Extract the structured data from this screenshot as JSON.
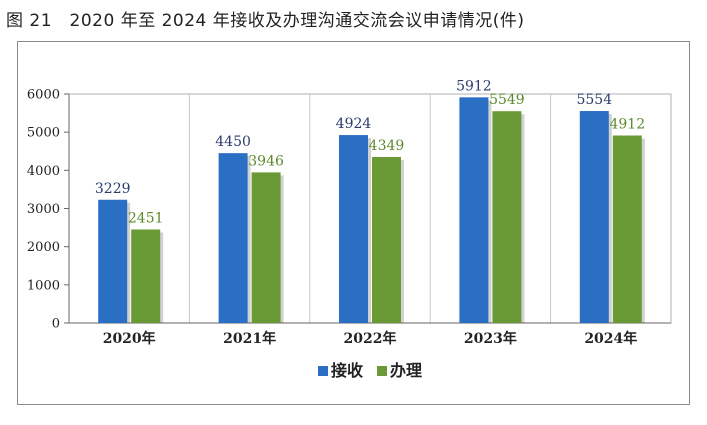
{
  "figure_title": "图 21　2020 年至 2024 年接收及办理沟通交流会议申请情况(件)",
  "colors": {
    "series_0": "#2a6fc4",
    "series_1": "#6a9a35",
    "label_0": "#2b3d6d",
    "label_1": "#5c8a2c"
  },
  "chart_data": {
    "type": "bar",
    "title": "",
    "xlabel": "",
    "ylabel": "",
    "categories": [
      "2020年",
      "2021年",
      "2022年",
      "2023年",
      "2024年"
    ],
    "series": [
      {
        "name": "接收",
        "values": [
          3229,
          4450,
          4924,
          5912,
          5554
        ]
      },
      {
        "name": "办理",
        "values": [
          2451,
          3946,
          4349,
          5549,
          4912
        ]
      }
    ],
    "ylim": [
      0,
      6000
    ],
    "yticks": [
      0,
      1000,
      2000,
      3000,
      4000,
      5000,
      6000
    ],
    "grid": false,
    "legend_position": "bottom"
  }
}
